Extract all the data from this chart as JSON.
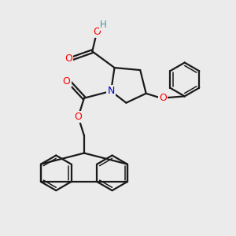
{
  "bg_color": "#ebebeb",
  "atom_colors": {
    "C": "#000000",
    "N": "#0000cc",
    "O": "#ff0000",
    "H": "#4a9090"
  },
  "bond_color": "#1a1a1a",
  "bond_width": 1.6,
  "figsize": [
    3.0,
    3.0
  ],
  "dpi": 100
}
